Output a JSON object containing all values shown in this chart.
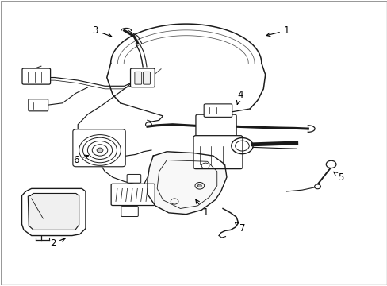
{
  "bg_color": "#ffffff",
  "border_color": "#cccccc",
  "fig_width": 4.89,
  "fig_height": 3.6,
  "dpi": 100,
  "line_color": "#1a1a1a",
  "text_color": "#000000",
  "arrow_color": "#000000",
  "font_size": 8.5,
  "labels": {
    "1a": {
      "xt": 0.74,
      "yt": 0.895,
      "xa": 0.68,
      "ya": 0.875,
      "text": "1"
    },
    "1b": {
      "xt": 0.53,
      "yt": 0.255,
      "xa": 0.5,
      "ya": 0.31,
      "text": "1"
    },
    "2": {
      "xt": 0.135,
      "yt": 0.148,
      "xa": 0.175,
      "ya": 0.17,
      "text": "2"
    },
    "3": {
      "xt": 0.245,
      "yt": 0.895,
      "xa": 0.295,
      "ya": 0.87,
      "text": "3"
    },
    "4": {
      "xt": 0.62,
      "yt": 0.67,
      "xa": 0.61,
      "ya": 0.625,
      "text": "4"
    },
    "5": {
      "xt": 0.88,
      "yt": 0.38,
      "xa": 0.855,
      "ya": 0.405,
      "text": "5"
    },
    "6": {
      "xt": 0.195,
      "yt": 0.44,
      "xa": 0.235,
      "ya": 0.46,
      "text": "6"
    },
    "7": {
      "xt": 0.625,
      "yt": 0.2,
      "xa": 0.6,
      "ya": 0.23,
      "text": "7"
    }
  }
}
